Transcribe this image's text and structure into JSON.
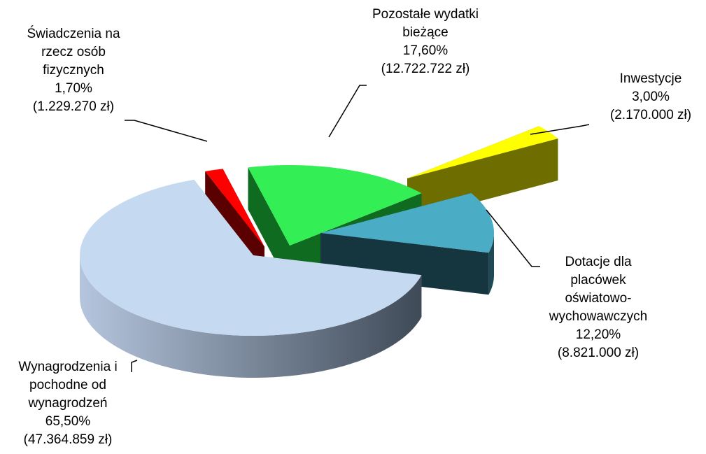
{
  "chart_data": {
    "type": "pie",
    "categories": [
      "Wynagrodzenia i pochodne od wynagrodzeń",
      "Świadczenia na rzecz osób fizycznych",
      "Pozostałe wydatki bieżące",
      "Inwestycje",
      "Dotacje dla placówek oświatowo-wychowawczych"
    ],
    "values": [
      65.5,
      1.7,
      17.6,
      3.0,
      12.2
    ],
    "value_labels": [
      "65,50%",
      "1,70%",
      "17,60%",
      "3,00%",
      "12,20%"
    ],
    "amounts": [
      47364859,
      1229270,
      12722722,
      2170000,
      8821000
    ],
    "amount_labels": [
      "(47.364.859 zł)",
      "(1.229.270 zł)",
      "(12.722.722 zł)",
      "(2.170.000 zł)",
      "(8.821.000 zł)"
    ],
    "colors": [
      "#c5d9f0",
      "#ff0000",
      "#33ee55",
      "#ffff00",
      "#4bacc6"
    ]
  }
}
